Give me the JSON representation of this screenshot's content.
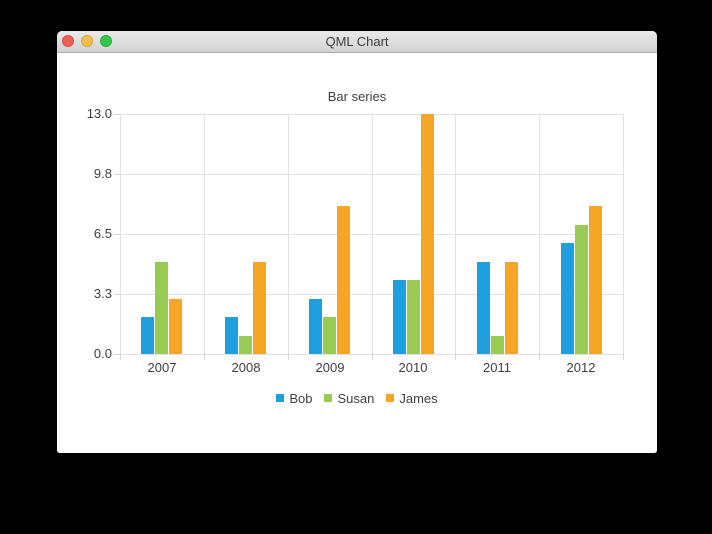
{
  "window": {
    "title": "QML Chart",
    "controls": [
      {
        "name": "close",
        "color": "#f15e56"
      },
      {
        "name": "minimize",
        "color": "#f6bf4b"
      },
      {
        "name": "zoom",
        "color": "#32c74c"
      }
    ]
  },
  "chart_data": {
    "type": "bar",
    "title": "Bar series",
    "categories": [
      "2007",
      "2008",
      "2009",
      "2010",
      "2011",
      "2012"
    ],
    "series": [
      {
        "name": "Bob",
        "color": "#209fdf",
        "values": [
          2,
          2,
          3,
          4,
          5,
          6
        ]
      },
      {
        "name": "Susan",
        "color": "#99ca53",
        "values": [
          5,
          1,
          2,
          4,
          1,
          7
        ]
      },
      {
        "name": "James",
        "color": "#f6a625",
        "values": [
          3,
          5,
          8,
          13,
          5,
          8
        ]
      }
    ],
    "ylim": [
      0,
      13
    ],
    "yticks": [
      {
        "value": 0,
        "label": "0.0"
      },
      {
        "value": 3.25,
        "label": "3.3"
      },
      {
        "value": 6.5,
        "label": "6.5"
      },
      {
        "value": 9.75,
        "label": "9.8"
      },
      {
        "value": 13,
        "label": "13.0"
      }
    ],
    "grid": true,
    "legend_position": "bottom",
    "grid_color": "#e2e2e2",
    "text_color": "#404040"
  }
}
